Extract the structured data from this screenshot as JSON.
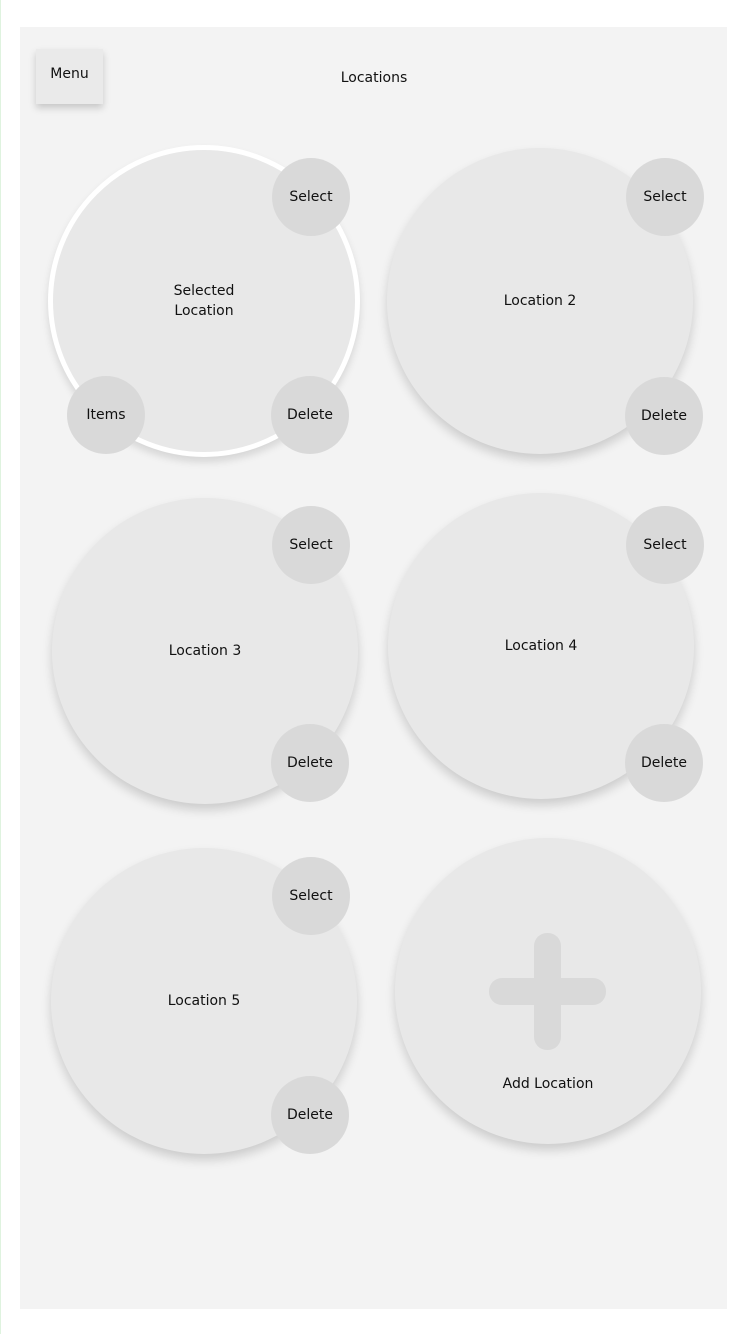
{
  "header": {
    "menu_label": "Menu",
    "title": "Locations"
  },
  "locations": [
    {
      "label": "Selected\nLocation",
      "select_label": "Select",
      "delete_label": "Delete",
      "items_label": "Items",
      "selected": true
    },
    {
      "label": "Location 2",
      "select_label": "Select",
      "delete_label": "Delete"
    },
    {
      "label": "Location 3",
      "select_label": "Select",
      "delete_label": "Delete"
    },
    {
      "label": "Location 4",
      "select_label": "Select",
      "delete_label": "Delete"
    },
    {
      "label": "Location 5",
      "select_label": "Select",
      "delete_label": "Delete"
    }
  ],
  "add_location": {
    "label": "Add Location",
    "icon": "plus-icon"
  },
  "colors": {
    "background": "#ffffff",
    "panel": "#f3f3f3",
    "circle": "#e8e8e8",
    "button": "#d9d9d9",
    "selected_ring": "#ffffff"
  }
}
